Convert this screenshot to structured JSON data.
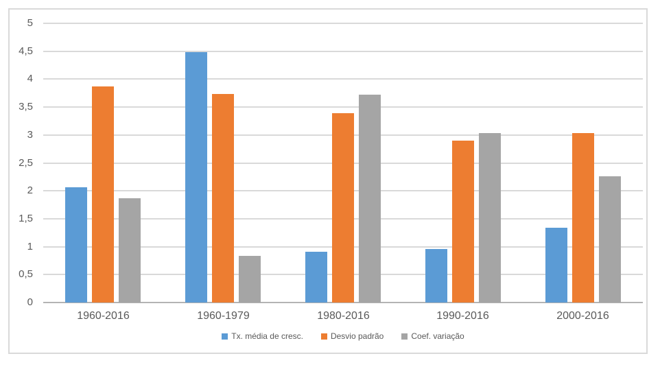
{
  "chart_data": {
    "type": "bar",
    "title": "",
    "categories": [
      "1960-2016",
      "1960-1979",
      "1980-2016",
      "1990-2016",
      "2000-2016"
    ],
    "series": [
      {
        "name": "Tx. média de cresc.",
        "color": "#5B9BD5",
        "values": [
          2.07,
          4.49,
          0.91,
          0.96,
          1.34
        ]
      },
      {
        "name": "Desvio padrão",
        "color": "#ED7D31",
        "values": [
          3.87,
          3.73,
          3.39,
          2.9,
          3.03
        ]
      },
      {
        "name": "Coef. variação",
        "color": "#A5A5A5",
        "values": [
          1.87,
          0.83,
          3.72,
          3.04,
          2.26
        ]
      }
    ],
    "xlabel": "",
    "ylabel": "",
    "ylim": [
      0,
      5
    ],
    "ytick_step": 0.5,
    "ytick_labels": [
      "0",
      "0,5",
      "1",
      "1,5",
      "2",
      "2,5",
      "3",
      "3,5",
      "4",
      "4,5",
      "5"
    ],
    "decimal_separator": ",",
    "grid": true,
    "legend_position": "bottom"
  },
  "colors": {
    "gridline": "#d9d9d9",
    "axis_line": "#b3b3b3",
    "frame_border": "#d9d9d9",
    "text": "#595959",
    "background": "#ffffff"
  }
}
